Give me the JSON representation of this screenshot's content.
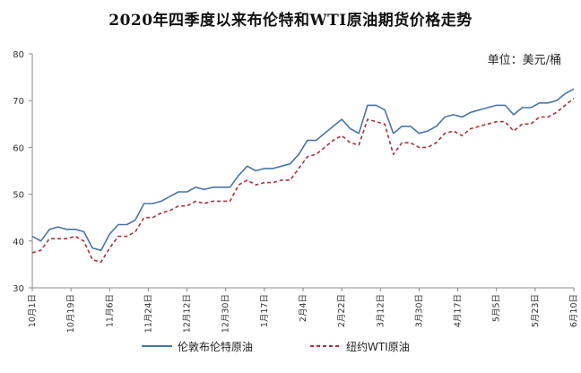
{
  "chart_data": {
    "type": "line",
    "title": "2020年四季度以来布伦特和WTI原油期货价格走势",
    "unit_label": "单位：美元/桶",
    "ylim": [
      30,
      80
    ],
    "y_ticks": [
      "30",
      "40",
      "50",
      "60",
      "70",
      "80"
    ],
    "x_tick_labels": [
      "10月1日",
      "10月19日",
      "11月6日",
      "11月24日",
      "12月12日",
      "12月30日",
      "1月17日",
      "2月4日",
      "2月22日",
      "3月12日",
      "3月30日",
      "4月17日",
      "5月5日",
      "5月23日",
      "6月10日"
    ],
    "x": [
      "10月1日",
      "10月5日",
      "10月9日",
      "10月13日",
      "10月17日",
      "10月21日",
      "10月25日",
      "10月29日",
      "11月2日",
      "11月6日",
      "11月10日",
      "11月14日",
      "11月18日",
      "11月22日",
      "11月26日",
      "11月30日",
      "12月4日",
      "12月8日",
      "12月12日",
      "12月16日",
      "12月20日",
      "12月24日",
      "12月28日",
      "1月1日",
      "1月5日",
      "1月9日",
      "1月13日",
      "1月17日",
      "1月21日",
      "1月25日",
      "1月29日",
      "2月2日",
      "2月6日",
      "2月10日",
      "2月14日",
      "2月18日",
      "2月22日",
      "2月26日",
      "3月2日",
      "3月6日",
      "3月10日",
      "3月14日",
      "3月18日",
      "3月22日",
      "3月26日",
      "3月30日",
      "4月3日",
      "4月7日",
      "4月11日",
      "4月15日",
      "4月19日",
      "4月23日",
      "4月27日",
      "5月1日",
      "5月5日",
      "5月9日",
      "5月13日",
      "5月17日",
      "5月21日",
      "5月25日",
      "5月29日",
      "6月2日",
      "6月6日",
      "6月10日"
    ],
    "series": [
      {
        "name": "伦敦布伦特原油",
        "color": "#4a74a8",
        "style": "solid",
        "values": [
          41,
          40,
          42.5,
          43,
          42.5,
          42.5,
          42,
          38.5,
          38,
          41.5,
          43.5,
          43.5,
          44.5,
          48,
          48,
          48.5,
          49.5,
          50.5,
          50.5,
          51.5,
          51,
          51.5,
          51.5,
          51.5,
          54,
          56,
          55,
          55.5,
          55.5,
          56,
          56.5,
          58.5,
          61.5,
          61.5,
          63,
          64.5,
          66,
          64,
          63,
          69,
          69,
          68,
          63,
          64.5,
          64.5,
          63,
          63.5,
          64.5,
          66.5,
          67,
          66.5,
          67.5,
          68,
          68.5,
          69,
          69,
          67,
          68.5,
          68.5,
          69.5,
          69.5,
          70,
          71.5,
          72.5
        ]
      },
      {
        "name": "纽约WTI原油",
        "color": "#a8323a",
        "style": "dashed",
        "values": [
          37.5,
          38,
          40.5,
          40.5,
          40.5,
          41,
          40,
          36,
          35.5,
          38.5,
          41,
          41,
          42,
          45,
          45,
          46,
          46.5,
          47.5,
          47.5,
          48.5,
          48,
          48.5,
          48.5,
          48.5,
          52,
          53,
          52,
          52.5,
          52.5,
          53,
          53,
          55.5,
          58,
          58.5,
          60,
          61.5,
          62.5,
          61,
          60.5,
          66,
          65.5,
          65,
          58.5,
          61,
          61,
          60,
          60,
          61,
          63,
          63.5,
          62.5,
          64,
          64.5,
          65,
          65.5,
          65.5,
          63.5,
          65,
          65,
          66.5,
          66.5,
          67.5,
          69,
          70.5
        ]
      }
    ],
    "grid": false,
    "legend_position": "bottom"
  }
}
